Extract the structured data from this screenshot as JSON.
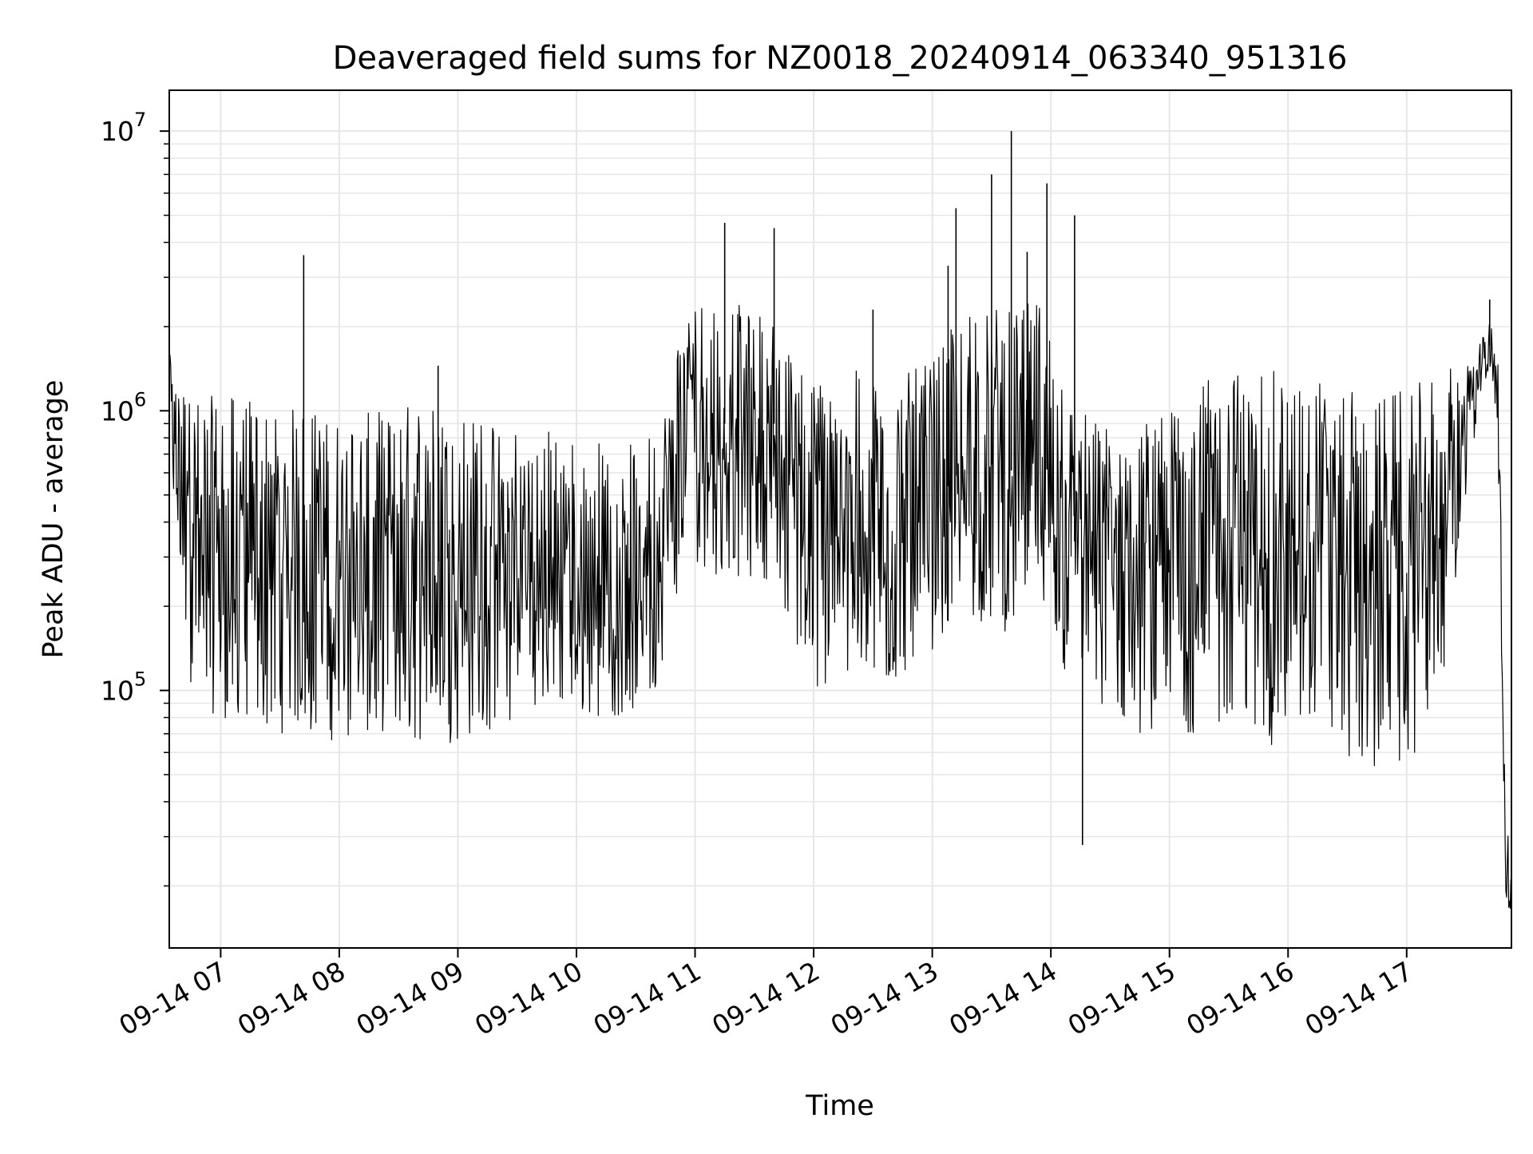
{
  "chart_data": {
    "type": "line",
    "title": "Deaveraged field sums for NZ0018_20240914_063340_951316",
    "xlabel": "Time",
    "ylabel": "Peak ADU - average",
    "yscale": "log",
    "ylim": [
      12000,
      14000000
    ],
    "xlim": [
      "2024-09-14 06:34",
      "2024-09-14 17:53"
    ],
    "x_ticks": [
      {
        "value": "2024-09-14 07:00",
        "label": "09-14 07"
      },
      {
        "value": "2024-09-14 08:00",
        "label": "09-14 08"
      },
      {
        "value": "2024-09-14 09:00",
        "label": "09-14 09"
      },
      {
        "value": "2024-09-14 10:00",
        "label": "09-14 10"
      },
      {
        "value": "2024-09-14 11:00",
        "label": "09-14 11"
      },
      {
        "value": "2024-09-14 12:00",
        "label": "09-14 12"
      },
      {
        "value": "2024-09-14 13:00",
        "label": "09-14 13"
      },
      {
        "value": "2024-09-14 14:00",
        "label": "09-14 14"
      },
      {
        "value": "2024-09-14 15:00",
        "label": "09-14 15"
      },
      {
        "value": "2024-09-14 16:00",
        "label": "09-14 16"
      },
      {
        "value": "2024-09-14 17:00",
        "label": "09-14 17"
      }
    ],
    "y_ticks": [
      {
        "value": 100000,
        "base": "10",
        "exp": "5"
      },
      {
        "value": 1000000,
        "base": "10",
        "exp": "6"
      },
      {
        "value": 10000000,
        "base": "10",
        "exp": "7"
      }
    ],
    "grid": true,
    "series_color": "#000000",
    "grid_color": "#e6e6e6",
    "series": [
      {
        "x": [
          "2024-09-14 06:34",
          "2024-09-14 06:45",
          "2024-09-14 07:00",
          "2024-09-14 07:15",
          "2024-09-14 07:30",
          "2024-09-14 07:41",
          "2024-09-14 08:00",
          "2024-09-14 08:20",
          "2024-09-14 08:40",
          "2024-09-14 09:00",
          "2024-09-14 09:20",
          "2024-09-14 09:40",
          "2024-09-14 10:00",
          "2024-09-14 10:20",
          "2024-09-14 10:40",
          "2024-09-14 10:55",
          "2024-09-14 11:15",
          "2024-09-14 11:40",
          "2024-09-14 12:00",
          "2024-09-14 12:20",
          "2024-09-14 12:40",
          "2024-09-14 13:00",
          "2024-09-14 13:20",
          "2024-09-14 13:38",
          "2024-09-14 13:55",
          "2024-09-14 14:15",
          "2024-09-14 14:40",
          "2024-09-14 15:00",
          "2024-09-14 15:20",
          "2024-09-14 15:45",
          "2024-09-14 16:00",
          "2024-09-14 16:20",
          "2024-09-14 16:40",
          "2024-09-14 17:00",
          "2024-09-14 17:20",
          "2024-09-14 17:35",
          "2024-09-14 17:43",
          "2024-09-14 17:46",
          "2024-09-14 17:50",
          "2024-09-14 17:53"
        ],
        "y": [
          1400000,
          300000,
          250000,
          280000,
          300000,
          260000,
          240000,
          220000,
          300000,
          280000,
          220000,
          200000,
          250000,
          200000,
          230000,
          800000,
          900000,
          900000,
          400000,
          450000,
          400000,
          450000,
          700000,
          600000,
          700000,
          300000,
          280000,
          300000,
          400000,
          350000,
          400000,
          350000,
          250000,
          300000,
          450000,
          1200000,
          1800000,
          1500000,
          20000,
          17000
        ],
        "y_low": [
          600000,
          90000,
          80000,
          75000,
          70000,
          70000,
          65000,
          70000,
          65000,
          65000,
          70000,
          90000,
          80000,
          80000,
          90000,
          300000,
          250000,
          250000,
          90000,
          100000,
          100000,
          140000,
          180000,
          160000,
          160000,
          80000,
          70000,
          70000,
          70000,
          60000,
          65000,
          60000,
          50000,
          50000,
          120000,
          800000,
          1200000,
          900000,
          18000,
          15000
        ],
        "y_high": [
          1600000,
          1100000,
          1150000,
          1100000,
          1000000,
          1050000,
          950000,
          1000000,
          1100000,
          1050000,
          950000,
          900000,
          850000,
          750000,
          850000,
          2500000,
          2600000,
          2100000,
          1300000,
          1400000,
          1300000,
          1500000,
          2600000,
          2300000,
          2500000,
          1000000,
          900000,
          1000000,
          1300000,
          1450000,
          1350000,
          1300000,
          1100000,
          1200000,
          1400000,
          1600000,
          2200000,
          2100000,
          40000,
          22000
        ]
      }
    ],
    "spikes": [
      {
        "x": "2024-09-14 07:42",
        "y": 3600000
      },
      {
        "x": "2024-09-14 08:50",
        "y": 1450000
      },
      {
        "x": "2024-09-14 11:15",
        "y": 4700000
      },
      {
        "x": "2024-09-14 11:40",
        "y": 4500000
      },
      {
        "x": "2024-09-14 12:30",
        "y": 2300000
      },
      {
        "x": "2024-09-14 13:08",
        "y": 3300000
      },
      {
        "x": "2024-09-14 13:12",
        "y": 5300000
      },
      {
        "x": "2024-09-14 13:30",
        "y": 7000000
      },
      {
        "x": "2024-09-14 13:40",
        "y": 10000000
      },
      {
        "x": "2024-09-14 13:48",
        "y": 3700000
      },
      {
        "x": "2024-09-14 13:58",
        "y": 6500000
      },
      {
        "x": "2024-09-14 14:12",
        "y": 5000000
      },
      {
        "x": "2024-09-14 14:16",
        "y": 28000
      },
      {
        "x": "2024-09-14 17:42",
        "y": 2500000
      }
    ]
  }
}
